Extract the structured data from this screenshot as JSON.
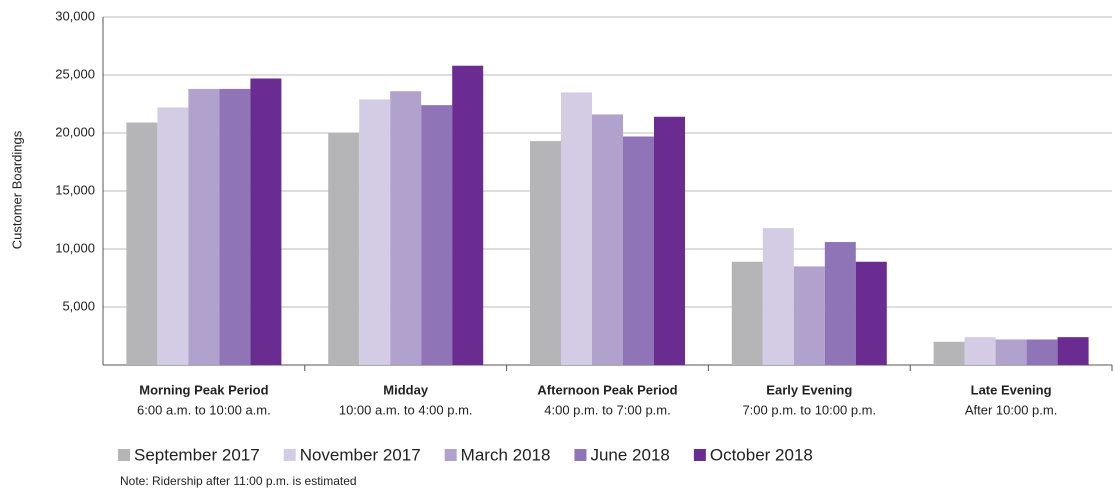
{
  "chart_data": {
    "type": "bar",
    "ylabel": "Customer Boardings",
    "categories": [
      "Morning Peak Period",
      "Midday",
      "Afternoon Peak Period",
      "Early Evening",
      "Late Evening"
    ],
    "category_subtitles": [
      "6:00 a.m. to 10:00 a.m.",
      "10:00 a.m. to 4:00 p.m.",
      "4:00 p.m. to 7:00 p.m.",
      "7:00 p.m. to 10:00 p.m.",
      "After 10:00 p.m."
    ],
    "series": [
      {
        "name": "September 2017",
        "color": "#b5b5b7",
        "values": [
          20900,
          20000,
          19300,
          8900,
          2000
        ]
      },
      {
        "name": "November 2017",
        "color": "#d4cce4",
        "values": [
          22200,
          22900,
          23500,
          11800,
          2400
        ]
      },
      {
        "name": "March 2018",
        "color": "#b1a1cd",
        "values": [
          23800,
          23600,
          21600,
          8500,
          2200
        ]
      },
      {
        "name": "June 2018",
        "color": "#8f75b7",
        "values": [
          23800,
          22400,
          19700,
          10600,
          2200
        ]
      },
      {
        "name": "October 2018",
        "color": "#6a2c91",
        "values": [
          24700,
          25800,
          21400,
          8900,
          2400
        ]
      }
    ],
    "ylim": [
      0,
      30000
    ],
    "yticks": [
      {
        "value": 5000,
        "label": "5,000"
      },
      {
        "value": 10000,
        "label": "10,000"
      },
      {
        "value": 15000,
        "label": "15,000"
      },
      {
        "value": 20000,
        "label": "20,000"
      },
      {
        "value": 25000,
        "label": "25,000"
      },
      {
        "value": 30000,
        "label": "30,000"
      }
    ],
    "grid": true,
    "legend": "bottom",
    "note": "Note: Ridership after 11:00 p.m. is estimated"
  }
}
